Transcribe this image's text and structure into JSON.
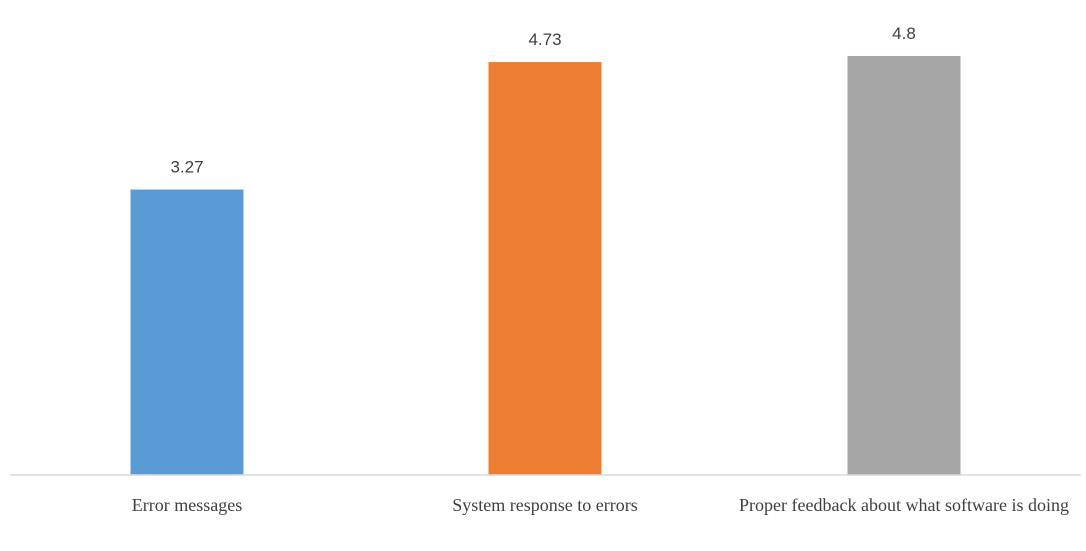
{
  "chart_data": {
    "type": "bar",
    "categories": [
      "Error messages",
      "System response to errors",
      "Proper feedback about what software is doing"
    ],
    "values": [
      3.27,
      4.73,
      4.8
    ],
    "value_labels": [
      "3.27",
      "4.73",
      "4.8"
    ],
    "colors": [
      "#5b9bd5",
      "#ed7d31",
      "#a5a5a5"
    ],
    "ylim": [
      0,
      5
    ],
    "grid": false,
    "legend": "none"
  }
}
